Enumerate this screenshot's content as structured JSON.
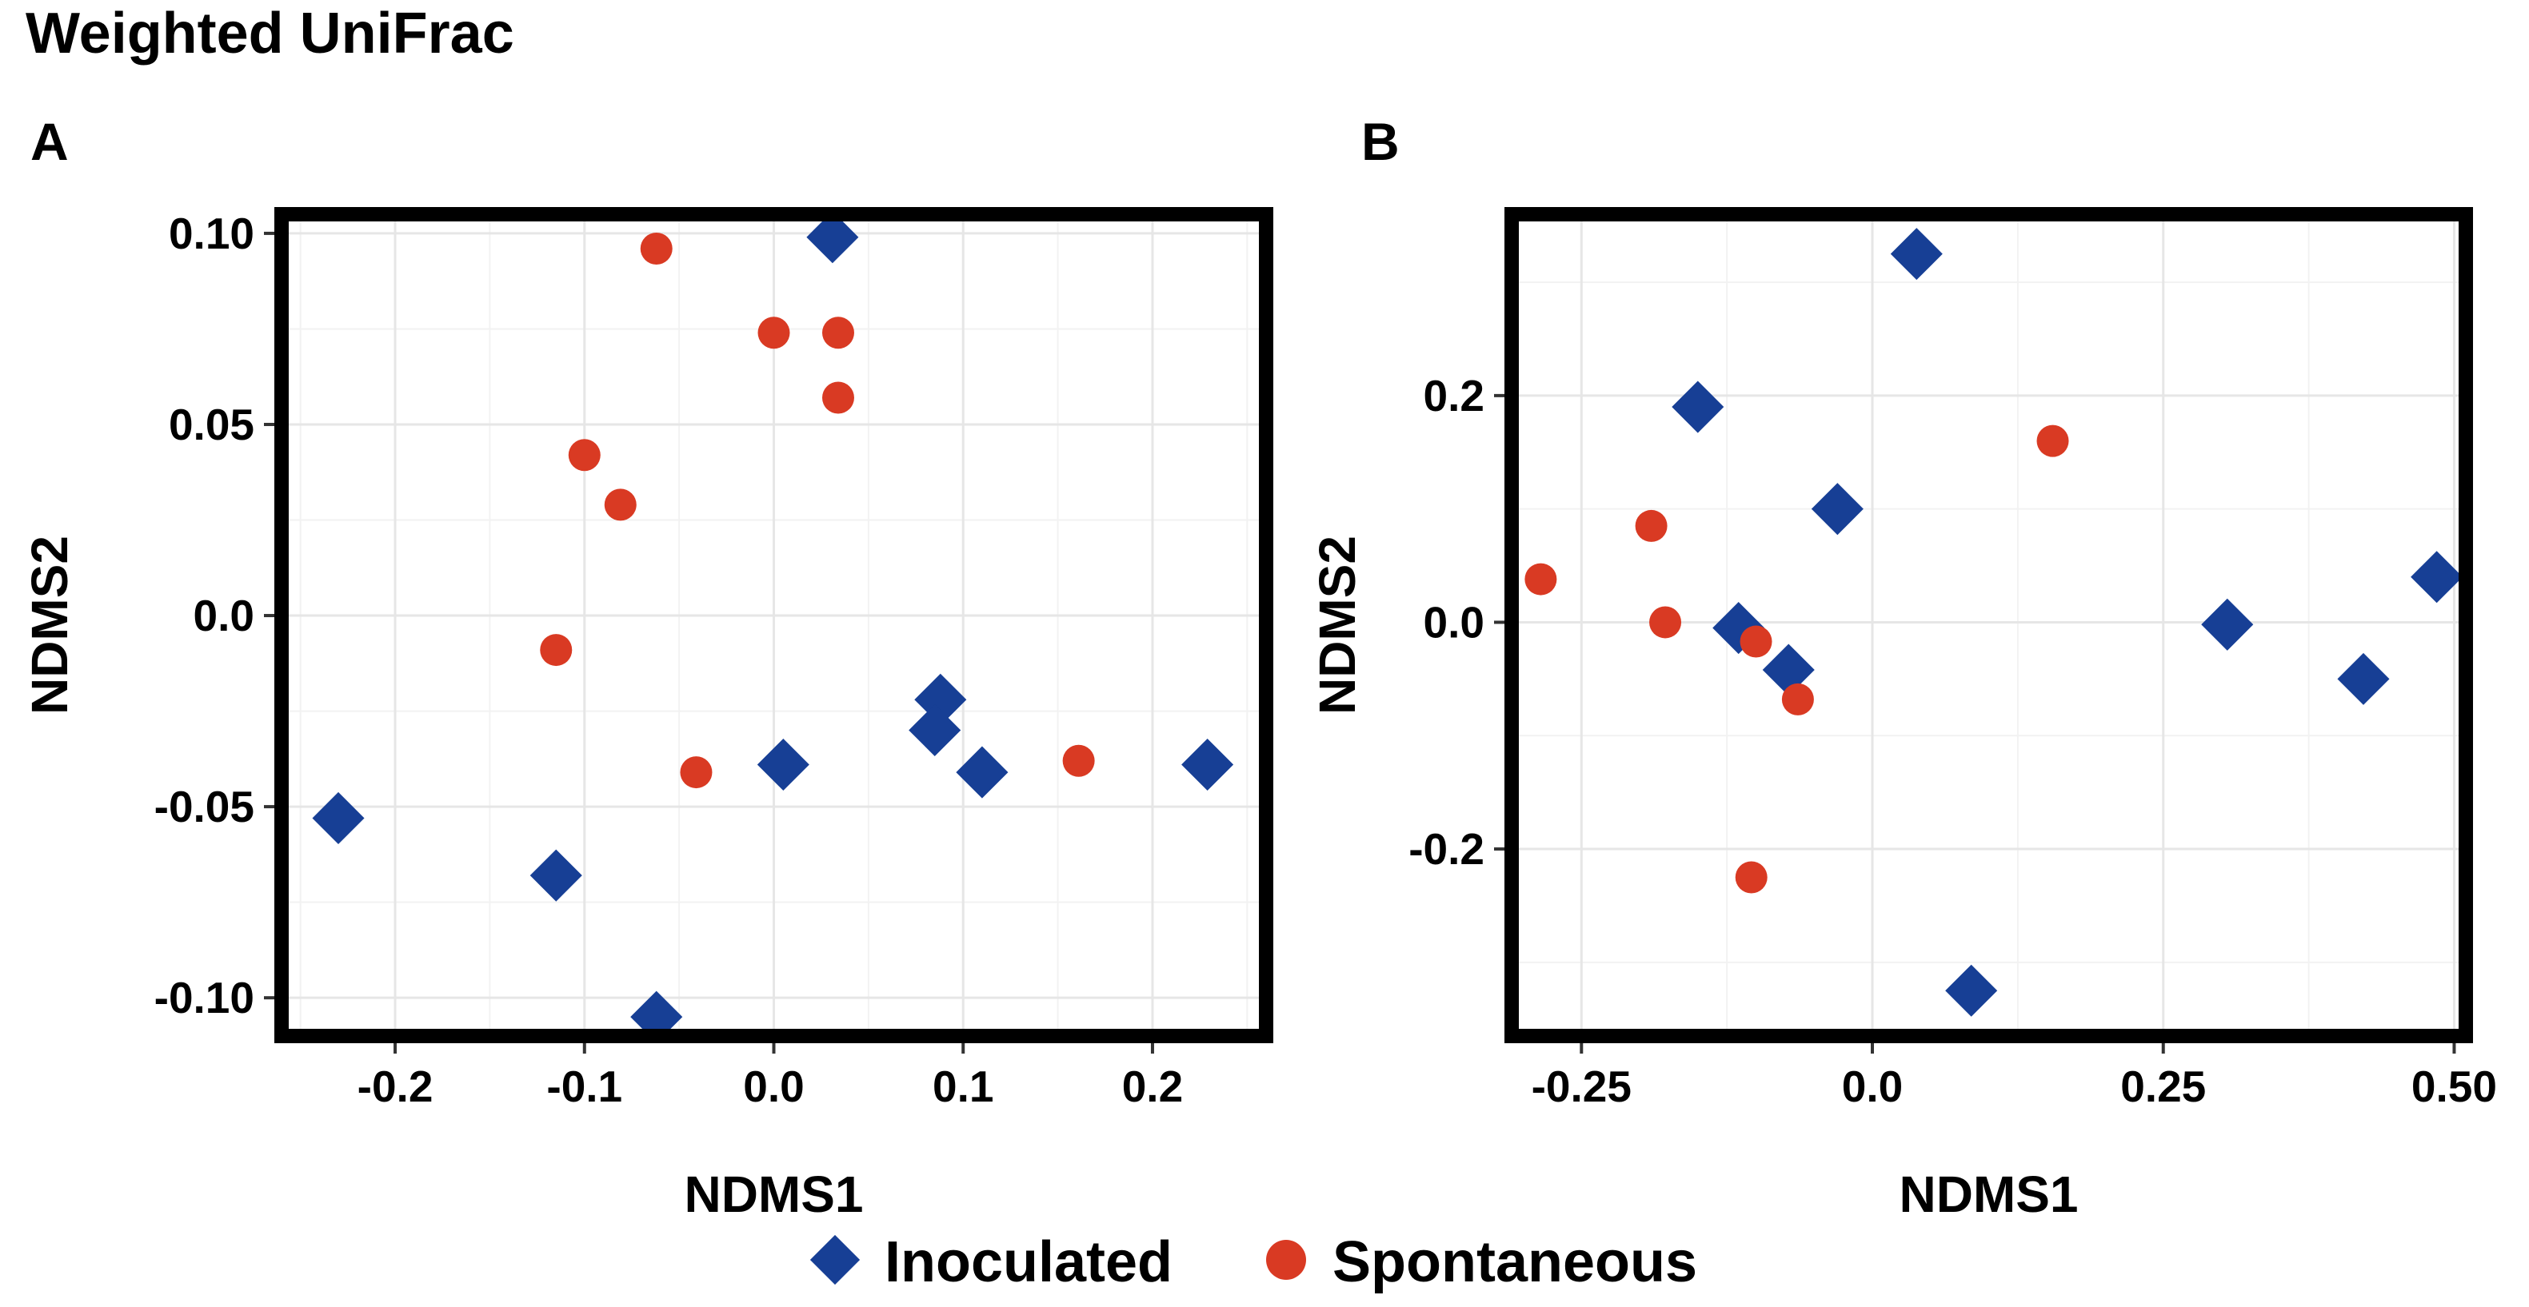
{
  "figure_title": "Weighted UniFrac",
  "colors": {
    "inoculated": "#173f95",
    "spontaneous": "#d93a23",
    "frame": "#000000"
  },
  "legend": {
    "items": [
      {
        "name": "Inoculated",
        "marker": "diamond",
        "color": "#173f95"
      },
      {
        "name": "Spontaneous",
        "marker": "circle",
        "color": "#d93a23"
      }
    ]
  },
  "chart_data": [
    {
      "panel": "A",
      "type": "scatter",
      "title": "",
      "xlabel": "NDMS1",
      "ylabel": "NDMS2",
      "xlim": [
        -0.26,
        0.26
      ],
      "ylim": [
        -0.11,
        0.105
      ],
      "xticks": [
        -0.2,
        -0.1,
        0.0,
        0.1,
        0.2
      ],
      "xtick_labels": [
        "-0.2",
        "-0.1",
        "0.0",
        "0.1",
        "0.2"
      ],
      "yticks": [
        -0.1,
        -0.05,
        0.0,
        0.05,
        0.1
      ],
      "ytick_labels": [
        "-0.10",
        "-0.05",
        "0.0",
        "0.05",
        "0.10"
      ],
      "grid": true,
      "series": [
        {
          "name": "Inoculated",
          "marker": "diamond",
          "x": [
            0.031,
            0.088,
            0.085,
            0.005,
            0.11,
            0.229,
            -0.23,
            -0.115,
            -0.062
          ],
          "y": [
            0.099,
            -0.022,
            -0.03,
            -0.039,
            -0.041,
            -0.039,
            -0.053,
            -0.068,
            -0.105
          ]
        },
        {
          "name": "Spontaneous",
          "marker": "circle",
          "x": [
            -0.062,
            0.0,
            0.034,
            0.034,
            -0.1,
            -0.081,
            -0.115,
            -0.041,
            0.161
          ],
          "y": [
            0.096,
            0.074,
            0.074,
            0.057,
            0.042,
            0.029,
            -0.009,
            -0.041,
            -0.038
          ]
        }
      ]
    },
    {
      "panel": "B",
      "type": "scatter",
      "title": "",
      "xlabel": "NDMS1",
      "ylabel": "NDMS2",
      "xlim": [
        -0.31,
        0.51
      ],
      "ylim": [
        -0.365,
        0.36
      ],
      "xticks": [
        -0.25,
        0.0,
        0.25,
        0.5
      ],
      "xtick_labels": [
        "-0.25",
        "0.0",
        "0.25",
        "0.50"
      ],
      "yticks": [
        -0.2,
        0.0,
        0.2
      ],
      "ytick_labels": [
        "-0.2",
        "0.0",
        "0.2"
      ],
      "grid": true,
      "series": [
        {
          "name": "Inoculated",
          "marker": "diamond",
          "x": [
            0.038,
            -0.15,
            -0.03,
            -0.115,
            -0.072,
            0.305,
            0.422,
            0.485,
            0.085
          ],
          "y": [
            0.325,
            0.19,
            0.1,
            -0.005,
            -0.042,
            -0.002,
            -0.05,
            0.04,
            -0.325
          ]
        },
        {
          "name": "Spontaneous",
          "marker": "circle",
          "x": [
            0.155,
            -0.19,
            -0.285,
            -0.178,
            -0.1,
            -0.064,
            -0.104
          ],
          "y": [
            0.16,
            0.085,
            0.038,
            0.0,
            -0.017,
            -0.068,
            -0.225
          ]
        }
      ]
    }
  ]
}
